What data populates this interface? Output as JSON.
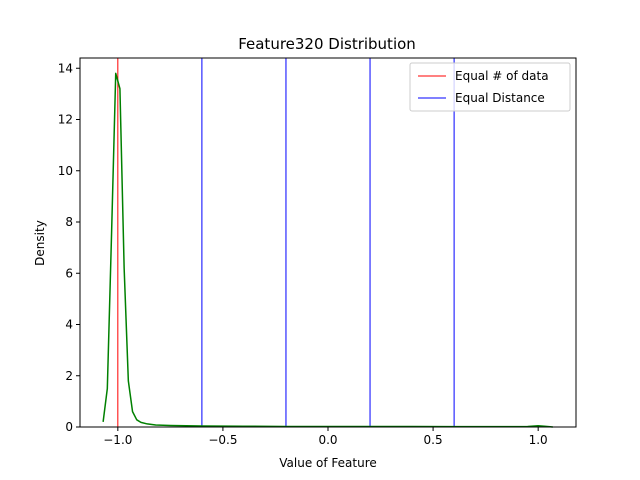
{
  "chart_data": {
    "type": "line",
    "title": "Feature320 Distribution",
    "xlabel": "Value of Feature",
    "ylabel": "Density",
    "xlim": [
      -1.18,
      1.18
    ],
    "ylim": [
      0,
      14.4
    ],
    "xticks": [
      -1.0,
      -0.5,
      0.0,
      0.5,
      1.0
    ],
    "xtick_labels": [
      "−1.0",
      "−0.5",
      "0.0",
      "0.5",
      "1.0"
    ],
    "yticks": [
      0,
      2,
      4,
      6,
      8,
      10,
      12,
      14
    ],
    "ytick_labels": [
      "0",
      "2",
      "4",
      "6",
      "8",
      "10",
      "12",
      "14"
    ],
    "grid": false,
    "legend_position": "upper right",
    "series": [
      {
        "color": "#008000",
        "x": [
          -1.07,
          -1.05,
          -1.03,
          -1.01,
          -0.99,
          -0.97,
          -0.95,
          -0.93,
          -0.91,
          -0.89,
          -0.86,
          -0.82,
          -0.75,
          -0.6,
          -0.4,
          -0.2,
          0.0,
          0.2,
          0.4,
          0.6,
          0.8,
          0.95,
          1.0,
          1.03,
          1.07
        ],
        "y": [
          0.2,
          1.5,
          7.5,
          13.8,
          13.2,
          6.2,
          1.8,
          0.6,
          0.28,
          0.18,
          0.12,
          0.08,
          0.06,
          0.04,
          0.03,
          0.02,
          0.02,
          0.02,
          0.02,
          0.015,
          0.015,
          0.02,
          0.05,
          0.03,
          0.0
        ]
      }
    ],
    "vlines": [
      {
        "name": "Equal # of data",
        "color": "#ff0000",
        "x": [
          -1.0
        ]
      },
      {
        "name": "Equal Distance",
        "color": "#0000ff",
        "x": [
          -0.6,
          -0.2,
          0.2,
          0.6
        ]
      }
    ]
  }
}
